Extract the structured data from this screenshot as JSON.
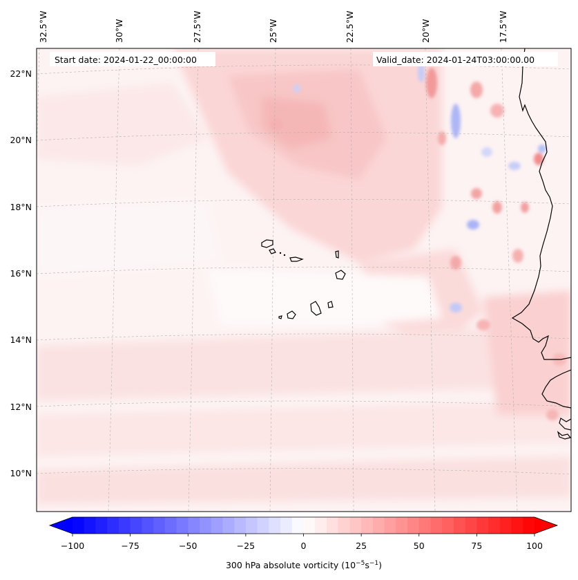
{
  "map": {
    "start_date_label": "Start date: 2024-01-22_00:00:00",
    "valid_date_label": "Valid_date: 2024-01-24T03:00:00.00",
    "lon_labels": [
      "32.5°W",
      "30°W",
      "27.5°W",
      "25°W",
      "22.5°W",
      "20°W",
      "17.5°W"
    ],
    "lat_labels": [
      "22°N",
      "20°N",
      "18°N",
      "16°N",
      "14°N",
      "12°N",
      "10°N"
    ],
    "colors": {
      "coast": "#000000",
      "gridline": "#b0b0b0",
      "background": "#fdf3f3"
    }
  },
  "colorbar": {
    "label_main": "300 hPa absolute vorticity (10",
    "label_exp1": "−5",
    "label_mid": "s",
    "label_exp2": "−1",
    "label_end": ")",
    "ticks": [
      "−100",
      "−75",
      "−50",
      "−25",
      "0",
      "25",
      "50",
      "75",
      "100"
    ],
    "min": -100,
    "max": 100,
    "colors": {
      "negative_max": "#0000ff",
      "zero": "#ffffff",
      "positive_max": "#ff0000"
    }
  }
}
